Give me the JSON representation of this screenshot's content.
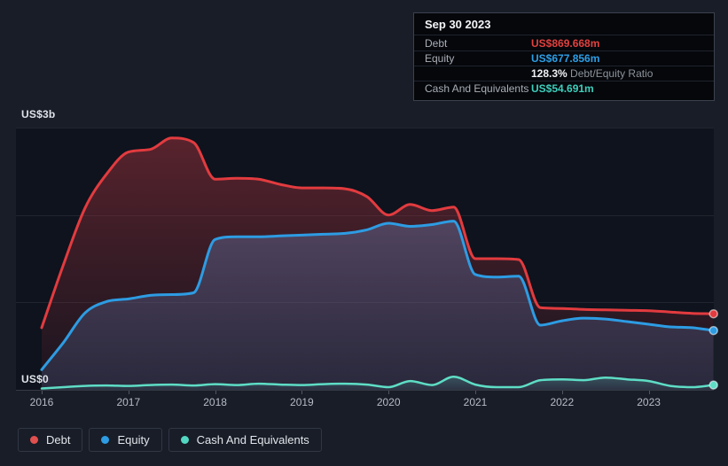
{
  "page": {
    "background": "#181d28",
    "plot_background": "#0e131d"
  },
  "y_axis": {
    "top_label": "US$3b",
    "zero_label": "US$0"
  },
  "tooltip": {
    "date": "Sep 30 2023",
    "debt_label": "Debt",
    "debt_value": "US$869.668m",
    "equity_label": "Equity",
    "equity_value": "US$677.856m",
    "ratio_value": "128.3%",
    "ratio_label": "Debt/Equity Ratio",
    "cash_label": "Cash And Equivalents",
    "cash_value": "US$54.691m"
  },
  "legend": {
    "items": [
      {
        "label": "Debt",
        "color": "#e0504e"
      },
      {
        "label": "Equity",
        "color": "#2d9ce3"
      },
      {
        "label": "Cash And Equivalents",
        "color": "#52d7c2"
      }
    ]
  },
  "chart_data": {
    "type": "area",
    "title": "",
    "xlabel": "",
    "ylabel": "US$",
    "ylim": [
      0,
      3000
    ],
    "y_gridline_values": [
      3000,
      2000,
      1000,
      0
    ],
    "x_tick_years": [
      2016,
      2017,
      2018,
      2019,
      2020,
      2021,
      2022,
      2023
    ],
    "x_tick_labels": [
      "2016",
      "2017",
      "2018",
      "2019",
      "2020",
      "2021",
      "2022",
      "2023"
    ],
    "x": [
      2016.0,
      2016.25,
      2016.5,
      2016.75,
      2017.0,
      2017.25,
      2017.5,
      2017.75,
      2018.0,
      2018.25,
      2018.5,
      2018.75,
      2019.0,
      2019.25,
      2019.5,
      2019.75,
      2020.0,
      2020.25,
      2020.5,
      2020.75,
      2021.0,
      2021.25,
      2021.5,
      2021.75,
      2022.0,
      2022.25,
      2022.5,
      2022.75,
      2023.0,
      2023.25,
      2023.5,
      2023.747
    ],
    "units": "US$ millions",
    "series": [
      {
        "name": "Debt",
        "color": "#e23b3f",
        "values": [
          710,
          1430,
          2080,
          2470,
          2720,
          2750,
          2880,
          2830,
          2410,
          2420,
          2410,
          2350,
          2310,
          2310,
          2300,
          2210,
          2000,
          2120,
          2050,
          2090,
          1500,
          1500,
          1490,
          940,
          930,
          920,
          915,
          910,
          905,
          890,
          875,
          869.668
        ]
      },
      {
        "name": "Equity",
        "color": "#2d9ce3",
        "values": [
          230,
          540,
          880,
          1010,
          1040,
          1080,
          1090,
          1110,
          1720,
          1750,
          1750,
          1760,
          1770,
          1780,
          1790,
          1830,
          1905,
          1870,
          1890,
          1930,
          1320,
          1290,
          1300,
          740,
          790,
          820,
          810,
          780,
          750,
          720,
          710,
          677.856
        ]
      },
      {
        "name": "Cash And Equivalents",
        "color": "#5eddc5",
        "values": [
          15,
          30,
          45,
          50,
          45,
          55,
          60,
          50,
          65,
          55,
          70,
          60,
          55,
          65,
          70,
          60,
          30,
          100,
          55,
          150,
          60,
          30,
          30,
          110,
          120,
          110,
          140,
          120,
          100,
          45,
          30,
          54.691
        ]
      }
    ],
    "legend_position": "bottom-left",
    "grid": true
  }
}
